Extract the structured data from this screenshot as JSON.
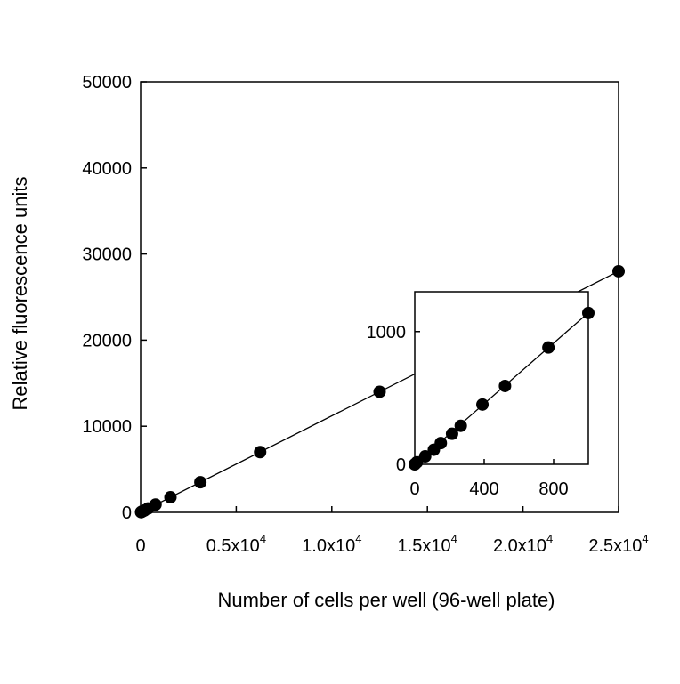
{
  "chart_data": [
    {
      "type": "scatter",
      "title": "",
      "xlabel": "Number of cells per well (96-well plate)",
      "ylabel": "Relative fluorescence units",
      "xlim": [
        0,
        25000
      ],
      "ylim": [
        0,
        50000
      ],
      "grid": false,
      "fit_line": true,
      "x_ticks": [
        {
          "value": 0,
          "mantissa": "0",
          "exp": ""
        },
        {
          "value": 5000,
          "mantissa": "0.5x10",
          "exp": "4"
        },
        {
          "value": 10000,
          "mantissa": "1.0x10",
          "exp": "4"
        },
        {
          "value": 15000,
          "mantissa": "1.5x10",
          "exp": "4"
        },
        {
          "value": 20000,
          "mantissa": "2.0x10",
          "exp": "4"
        },
        {
          "value": 25000,
          "mantissa": "2.5x10",
          "exp": "4"
        }
      ],
      "y_ticks": [
        {
          "value": 0,
          "label": "0"
        },
        {
          "value": 10000,
          "label": "10000"
        },
        {
          "value": 20000,
          "label": "20000"
        },
        {
          "value": 30000,
          "label": "30000"
        },
        {
          "value": 40000,
          "label": "40000"
        },
        {
          "value": 50000,
          "label": "50000"
        }
      ],
      "series": [
        {
          "x": [
            24,
            49,
            98,
            195,
            390,
            780,
            1560,
            3125,
            6250,
            12500,
            25000
          ],
          "y": [
            30,
            60,
            110,
            220,
            450,
            900,
            1750,
            3500,
            7000,
            14000,
            28000
          ]
        }
      ]
    },
    {
      "type": "scatter",
      "title": "",
      "xlabel": "",
      "ylabel": "",
      "inset": true,
      "xlim": [
        0,
        1000
      ],
      "ylim": [
        0,
        1300
      ],
      "grid": false,
      "fit_line": true,
      "x_ticks": [
        {
          "value": 0,
          "label": "0"
        },
        {
          "value": 400,
          "label": "400"
        },
        {
          "value": 800,
          "label": "800"
        }
      ],
      "y_ticks": [
        {
          "value": 0,
          "label": "0"
        },
        {
          "value": 1000,
          "label": "1000"
        }
      ],
      "series": [
        {
          "x": [
            0,
            12,
            60,
            110,
            150,
            215,
            265,
            390,
            520,
            770,
            1000
          ],
          "y": [
            0,
            15,
            60,
            110,
            160,
            230,
            290,
            450,
            590,
            880,
            1140
          ]
        }
      ]
    }
  ]
}
